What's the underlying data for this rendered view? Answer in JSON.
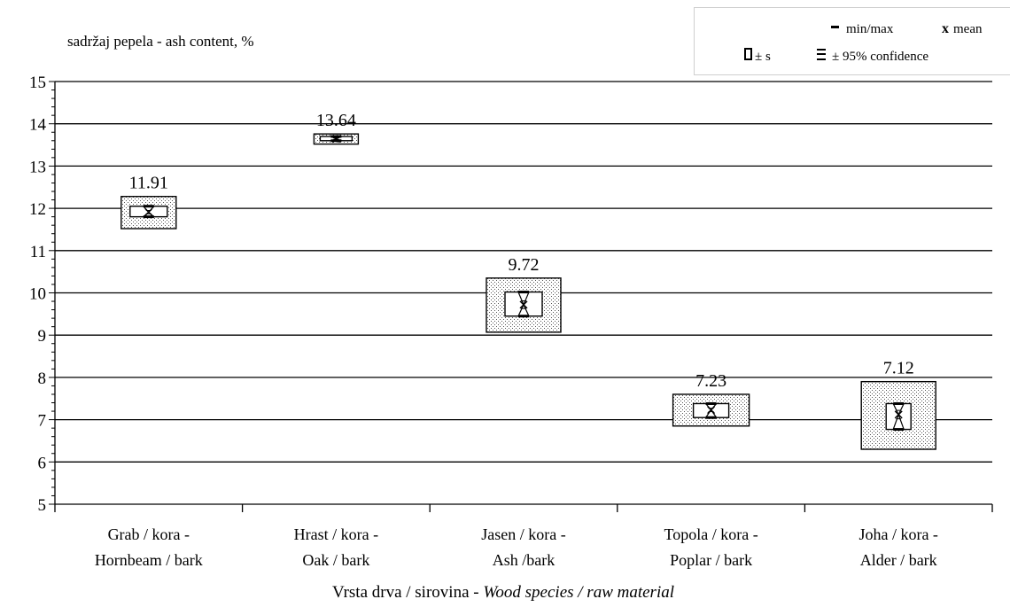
{
  "chart_data": {
    "type": "box",
    "title": "sadržaj pepela - ash content, %",
    "xlabel": "Vrsta drva / sirovina - ",
    "xlabel_italic": "Wood species / raw material",
    "ylim": [
      5,
      15
    ],
    "yticks": [
      5,
      6,
      7,
      8,
      9,
      10,
      11,
      12,
      13,
      14,
      15
    ],
    "grid": true,
    "legend": {
      "placement": "top-right",
      "minmax_label": "min/max",
      "mean_label": "mean",
      "sd_label": "± s",
      "ci_label": "± 95% confidence"
    },
    "categories": [
      {
        "line1": "Grab / kora -",
        "line2": "Hornbeam / bark",
        "mean": 11.91,
        "mean_label": "11.91",
        "sd_low": 11.52,
        "sd_high": 12.28,
        "min": 11.8,
        "max": 12.05,
        "ci_low": 11.87,
        "ci_high": 11.95
      },
      {
        "line1": "Hrast / kora -",
        "line2": "Oak / bark",
        "mean": 13.64,
        "mean_label": "13.64",
        "sd_low": 13.52,
        "sd_high": 13.76,
        "min": 13.6,
        "max": 13.7,
        "ci_low": 13.62,
        "ci_high": 13.66
      },
      {
        "line1": "Jasen / kora -",
        "line2": "Ash /bark",
        "mean": 9.72,
        "mean_label": "9.72",
        "sd_low": 9.07,
        "sd_high": 10.35,
        "min": 9.45,
        "max": 10.02,
        "ci_low": 9.63,
        "ci_high": 9.81
      },
      {
        "line1": "Topola / kora -",
        "line2": "Poplar / bark",
        "mean": 7.23,
        "mean_label": "7.23",
        "sd_low": 6.85,
        "sd_high": 7.6,
        "min": 7.05,
        "max": 7.38,
        "ci_low": 7.19,
        "ci_high": 7.27
      },
      {
        "line1": "Joha / kora -",
        "line2": "Alder / bark",
        "mean": 7.12,
        "mean_label": "7.12",
        "sd_low": 6.3,
        "sd_high": 7.9,
        "min": 6.77,
        "max": 7.38,
        "ci_low": 7.02,
        "ci_high": 7.22
      }
    ]
  }
}
